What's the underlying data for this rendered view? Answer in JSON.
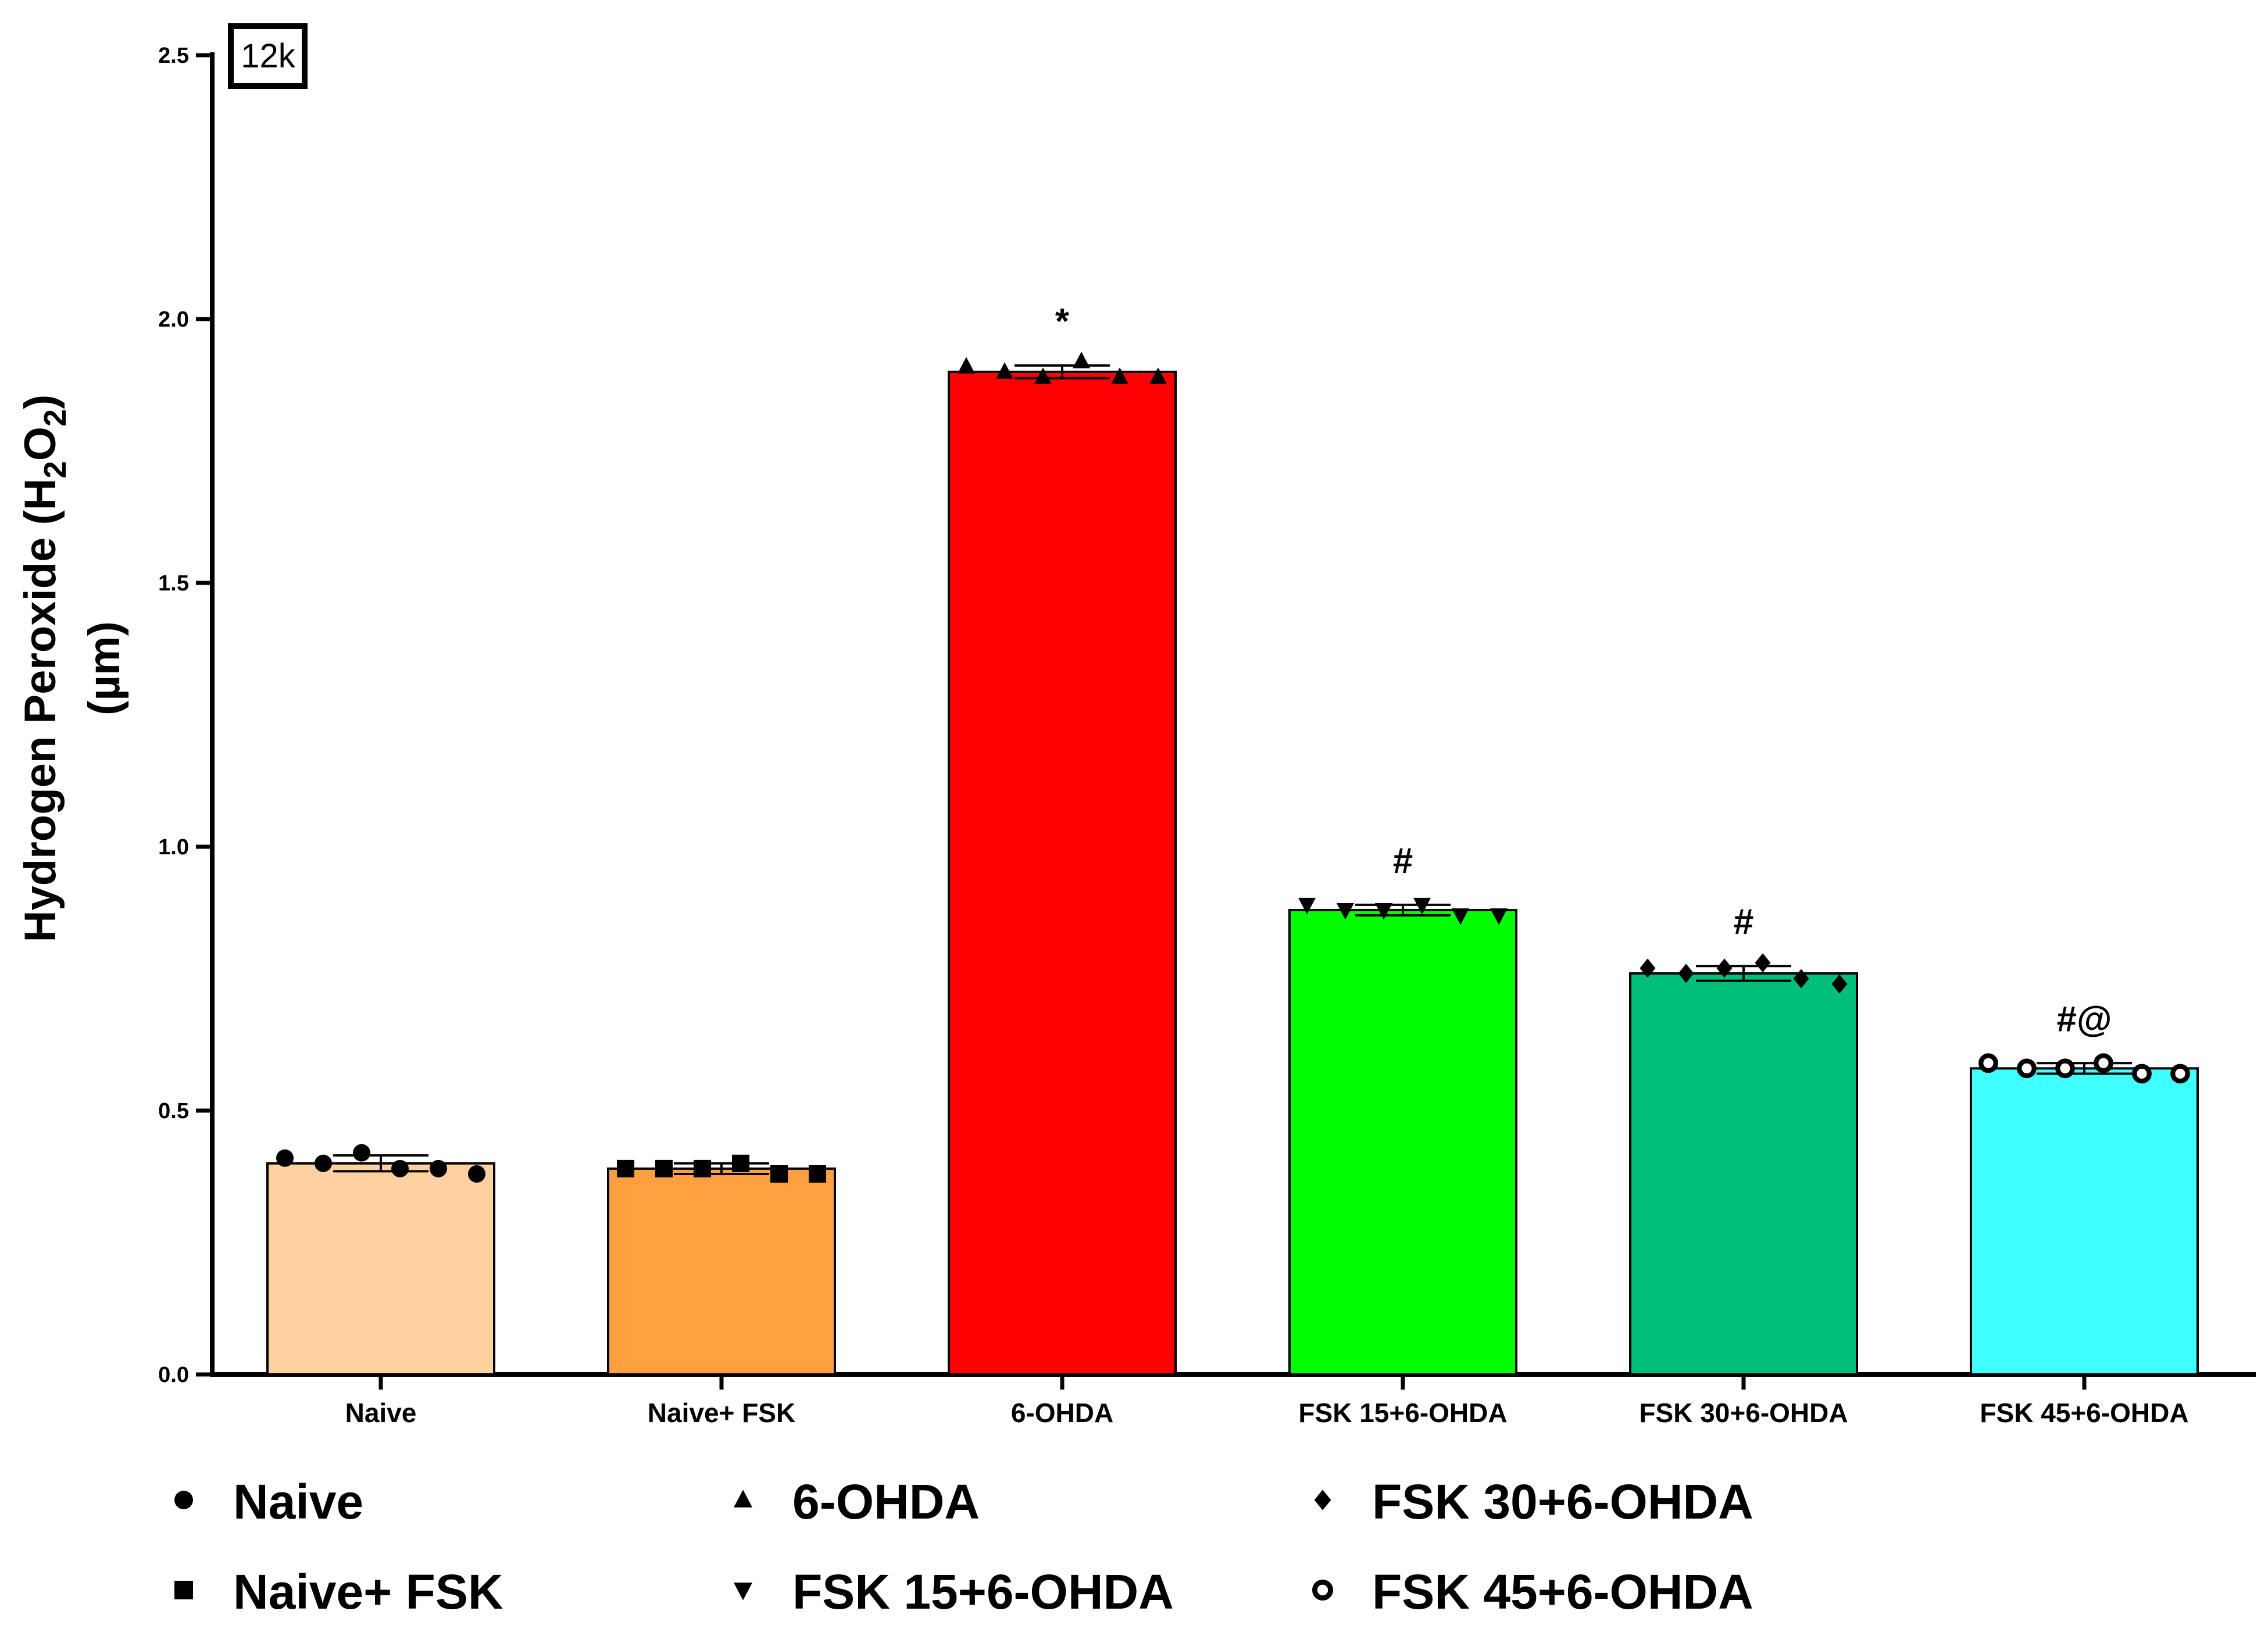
{
  "panel_label": "12k",
  "chart_data": {
    "type": "bar",
    "ylabel_main": "Hydrogen Peroxide (H",
    "ylabel_sub1": "2",
    "ylabel_mid": "O",
    "ylabel_sub2": "2",
    "ylabel_close": ")",
    "ylabel_unit": "(µm)",
    "xlabel": "",
    "ylim": [
      0,
      2.5
    ],
    "yticks": [
      "0.0",
      "0.5",
      "1.0",
      "1.5",
      "2.0",
      "2.5"
    ],
    "grid": false,
    "categories": [
      "Naive",
      "Naive+ FSK",
      "6-OHDA",
      "FSK 15+6-OHDA",
      "FSK 30+6-OHDA",
      "FSK 45+6-OHDA"
    ],
    "values": [
      0.4,
      0.39,
      1.9,
      0.88,
      0.76,
      0.58
    ],
    "errors": [
      0.015,
      0.01,
      0.012,
      0.01,
      0.014,
      0.01
    ],
    "colors": [
      "#FFD1A1",
      "#FFA040",
      "#FF0000",
      "#00FF00",
      "#00BF78",
      "#40FFFF"
    ],
    "markers": [
      "circle",
      "square",
      "triangle-up",
      "triangle-down",
      "diamond",
      "open-circle"
    ],
    "points": [
      [
        0.41,
        0.4,
        0.42,
        0.39,
        0.39,
        0.38
      ],
      [
        0.39,
        0.39,
        0.39,
        0.4,
        0.38,
        0.38
      ],
      [
        1.91,
        1.9,
        1.89,
        1.92,
        1.89,
        1.89
      ],
      [
        0.89,
        0.88,
        0.88,
        0.89,
        0.87,
        0.87
      ],
      [
        0.77,
        0.76,
        0.77,
        0.78,
        0.75,
        0.74
      ],
      [
        0.59,
        0.58,
        0.58,
        0.59,
        0.57,
        0.57
      ]
    ],
    "annotations": [
      "",
      "",
      "*",
      "#",
      "#",
      "#@"
    ],
    "legend_placement": "bottom",
    "legend": [
      "Naive",
      "Naive+ FSK",
      "6-OHDA",
      "FSK 15+6-OHDA",
      "FSK 30+6-OHDA",
      "FSK 45+6-OHDA"
    ]
  }
}
